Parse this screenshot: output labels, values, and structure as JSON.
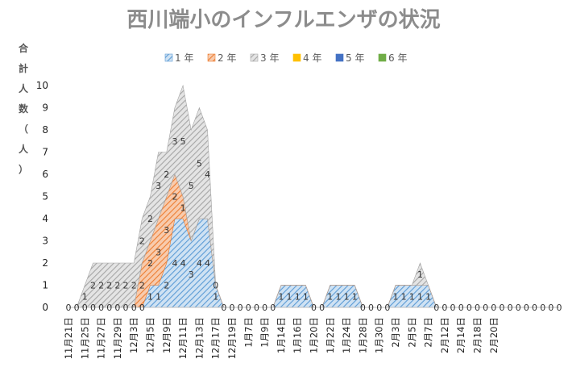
{
  "chart_data": {
    "type": "area",
    "title": "西川端小のインフルエンザの状況",
    "ylabel": "合計人数（人）",
    "ylim": [
      0,
      10
    ],
    "yticks": [
      0,
      1,
      2,
      3,
      4,
      5,
      6,
      7,
      8,
      9,
      10
    ],
    "stacked": true,
    "legend_position": "top",
    "x_tick_labels": [
      "11月21日",
      "11月25日",
      "11月27日",
      "11月29日",
      "12月3日",
      "12月5日",
      "12月9日",
      "12月11日",
      "12月13日",
      "12月17日",
      "12月19日",
      "1月7日",
      "1月9日",
      "1月14日",
      "1月16日",
      "1月20日",
      "1月22日",
      "1月24日",
      "1月28日",
      "1月30日",
      "2月3日",
      "2月5日",
      "2月7日",
      "2月12日",
      "2月14日",
      "2月18日",
      "2月20日"
    ],
    "series": [
      {
        "name": "1年",
        "color": "#5b9bd5",
        "values": [
          0,
          0,
          0,
          0,
          0,
          0,
          0,
          0,
          0,
          0,
          1,
          1,
          2,
          4,
          4,
          3,
          4,
          4,
          1,
          0,
          0,
          0,
          0,
          0,
          0,
          0,
          1,
          1,
          1,
          1,
          0,
          0,
          1,
          1,
          1,
          1,
          0,
          0,
          0,
          0,
          1,
          1,
          1,
          1,
          1,
          0,
          0,
          0,
          0,
          0,
          0,
          0,
          0,
          0,
          0,
          0,
          0,
          0,
          0,
          0,
          0
        ]
      },
      {
        "name": "2年",
        "color": "#ed7d31",
        "values": [
          0,
          0,
          0,
          0,
          0,
          0,
          0,
          0,
          0,
          2,
          2,
          3,
          3,
          2,
          1,
          0,
          0,
          0,
          0,
          0,
          0,
          0,
          0,
          0,
          0,
          0,
          0,
          0,
          0,
          0,
          0,
          0,
          0,
          0,
          0,
          0,
          0,
          0,
          0,
          0,
          0,
          0,
          0,
          0,
          0,
          0,
          0,
          0,
          0,
          0,
          0,
          0,
          0,
          0,
          0,
          0,
          0,
          0,
          0,
          0,
          0
        ]
      },
      {
        "name": "3年",
        "color": "#a5a5a5",
        "values": [
          0,
          0,
          1,
          2,
          2,
          2,
          2,
          2,
          2,
          2,
          2,
          3,
          2,
          3,
          5,
          5,
          5,
          4,
          0,
          0,
          0,
          0,
          0,
          0,
          0,
          0,
          0,
          0,
          0,
          0,
          0,
          0,
          0,
          0,
          0,
          0,
          0,
          0,
          0,
          0,
          0,
          0,
          0,
          1,
          0,
          0,
          0,
          0,
          0,
          0,
          0,
          0,
          0,
          0,
          0,
          0,
          0,
          0,
          0,
          0,
          0
        ]
      },
      {
        "name": "4年",
        "color": "#ffc000",
        "values": [
          0,
          0,
          0,
          0,
          0,
          0,
          0,
          0,
          0,
          0,
          0,
          0,
          0,
          0,
          0,
          0,
          0,
          0,
          0,
          0,
          0,
          0,
          0,
          0,
          0,
          0,
          0,
          0,
          0,
          0,
          0,
          0,
          0,
          0,
          0,
          0,
          0,
          0,
          0,
          0,
          0,
          0,
          0,
          0,
          0,
          0,
          0,
          0,
          0,
          0,
          0,
          0,
          0,
          0,
          0,
          0,
          0,
          0,
          0,
          0,
          0
        ]
      },
      {
        "name": "5年",
        "color": "#4472c4",
        "values": [
          0,
          0,
          0,
          0,
          0,
          0,
          0,
          0,
          0,
          0,
          0,
          0,
          0,
          0,
          0,
          0,
          0,
          0,
          0,
          0,
          0,
          0,
          0,
          0,
          0,
          0,
          0,
          0,
          0,
          0,
          0,
          0,
          0,
          0,
          0,
          0,
          0,
          0,
          0,
          0,
          0,
          0,
          0,
          0,
          0,
          0,
          0,
          0,
          0,
          0,
          0,
          0,
          0,
          0,
          0,
          0,
          0,
          0,
          0,
          0,
          0
        ]
      },
      {
        "name": "6年",
        "color": "#70ad47",
        "values": [
          0,
          0,
          0,
          0,
          0,
          0,
          0,
          0,
          0,
          0,
          0,
          0,
          0,
          0,
          0,
          0,
          0,
          0,
          0,
          0,
          0,
          0,
          0,
          0,
          0,
          0,
          0,
          0,
          0,
          0,
          0,
          0,
          0,
          0,
          0,
          0,
          0,
          0,
          0,
          0,
          0,
          0,
          0,
          0,
          0,
          0,
          0,
          0,
          0,
          0,
          0,
          0,
          0,
          0,
          0,
          0,
          0,
          0,
          0,
          0,
          0
        ]
      }
    ]
  }
}
